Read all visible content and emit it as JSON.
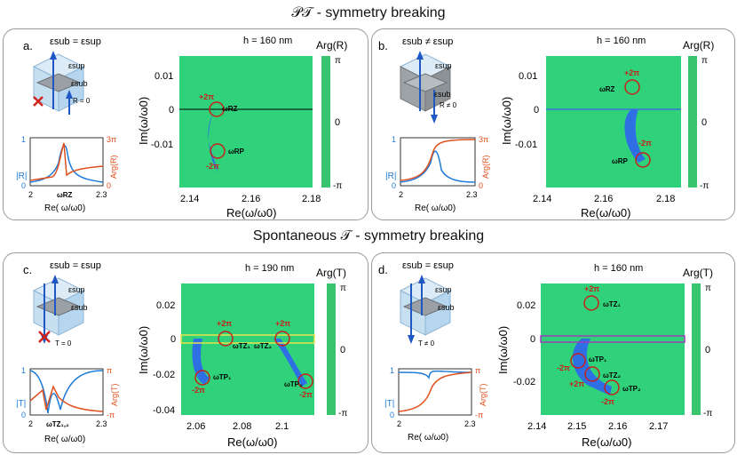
{
  "headers": {
    "pt": "𝒫𝒯 - symmetry breaking",
    "t": "Spontaneous 𝒯 - symmetry breaking"
  },
  "colors": {
    "blue": "#1f7ad6",
    "orange": "#e0501e",
    "red": "#c8201a"
  },
  "panels": {
    "a": {
      "letter": "a.",
      "cond": "εsub = εsup",
      "sup": "εsup",
      "sub": "εsub",
      "rcond": "R = 0",
      "h": "h = 160 nm",
      "cbar_title": "Arg(R)",
      "cbar_top": "π",
      "cbar_mid": "0",
      "cbar_bot": "-π",
      "xlabel": "Re(ω/ω0)",
      "ylabel": "Im(ω/ω0)",
      "xticks": [
        "2.14",
        "2.16",
        "2.18"
      ],
      "yticks": [
        "0.01",
        "0",
        "-0.01"
      ],
      "ann": {
        "p1": "+2π",
        "z1": "ωRZ",
        "m1": "-2π",
        "z2": "ωRP"
      },
      "inset": {
        "ylabel": "|R|",
        "rlabel": "Arg(R)",
        "y1": "1",
        "y0": "0",
        "r1": "3π",
        "r0": "0",
        "x0": "2",
        "x1": "2.3",
        "mark": "ωRZ",
        "xlabel": "Re( ω/ω0)"
      }
    },
    "b": {
      "letter": "b.",
      "cond": "εsub ≠ εsup",
      "sup": "εsup",
      "sub": "εsub",
      "rcond": "R ≠ 0",
      "h": "h = 160 nm",
      "cbar_title": "Arg(R)",
      "cbar_top": "π",
      "cbar_mid": "0",
      "cbar_bot": "-π",
      "xlabel": "Re(ω/ω0)",
      "ylabel": "Im(ω/ω0)",
      "xticks": [
        "2.14",
        "2.16",
        "2.18"
      ],
      "yticks": [
        "0.01",
        "0",
        "-0.01"
      ],
      "ann": {
        "p1": "+2π",
        "z1": "ωRZ",
        "m1": "-2π",
        "z2": "ωRP"
      },
      "inset": {
        "ylabel": "|R|",
        "rlabel": "Arg(R)",
        "y1": "1",
        "y0": "0",
        "r1": "3π",
        "r0": "0",
        "x0": "2",
        "x1": "2.3",
        "mark": "",
        "xlabel": "Re( ω/ω0)"
      }
    },
    "c": {
      "letter": "c.",
      "cond": "εsub = εsup",
      "sup": "εsup",
      "sub": "εsub",
      "rcond": "T = 0",
      "h": "h = 190 nm",
      "cbar_title": "Arg(T)",
      "cbar_top": "π",
      "cbar_mid": "0",
      "cbar_bot": "-π",
      "xlabel": "Re(ω/ω0)",
      "ylabel": "Im(ω/ω0)",
      "xticks": [
        "2.06",
        "2.08",
        "2.1"
      ],
      "yticks": [
        "0.02",
        "0",
        "-0.02",
        "-0.04"
      ],
      "ann": {
        "p1": "+2π",
        "z1": "ωTZ₁",
        "p2": "+2π",
        "z2": "ωTZ₂",
        "z3": "ωTP₁",
        "m1": "-2π",
        "z4": "ωTP₂",
        "m2": "-2π"
      },
      "inset": {
        "ylabel": "|T|",
        "rlabel": "Arg(T)",
        "y1": "1",
        "y0": "0",
        "r1": "π",
        "r0": "-π",
        "x0": "2",
        "x1": "2.3",
        "mark": "ωTZ₁,₂",
        "xlabel": "Re( ω/ω0)"
      }
    },
    "d": {
      "letter": "d.",
      "cond": "εsub = εsup",
      "sup": "εsup",
      "sub": "εsub",
      "rcond": "T ≠ 0",
      "h": "h = 160 nm",
      "cbar_title": "Arg(T)",
      "cbar_top": "π",
      "cbar_mid": "0",
      "cbar_bot": "-π",
      "xlabel": "Re(ω/ω0)",
      "ylabel": "Im(ω/ω0)",
      "xticks": [
        "2.14",
        "2.15",
        "2.16",
        "2.17"
      ],
      "yticks": [
        "0.02",
        "0",
        "-0.02"
      ],
      "ann": {
        "p1": "+2π",
        "z1": "ωTZ₁",
        "m1": "-2π",
        "z2": "ωTP₁",
        "p2": "+2π",
        "z3": "ωTZ₂",
        "m2": "-2π",
        "z4": "ωTP₂"
      },
      "inset": {
        "ylabel": "|T|",
        "rlabel": "Arg(T)",
        "y1": "1",
        "y0": "0",
        "r1": "π",
        "r0": "-π",
        "x0": "2",
        "x1": "2.3",
        "mark": "",
        "xlabel": "Re( ω/ω0)"
      }
    }
  }
}
